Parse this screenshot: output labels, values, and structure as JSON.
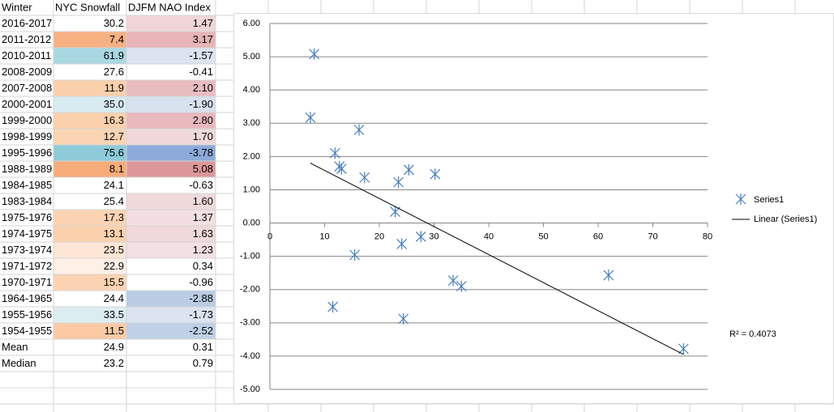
{
  "table": {
    "header": [
      "Winter",
      "NYC Snowfall",
      "DJFM NAO Index"
    ],
    "rows": [
      [
        "2016-2017",
        "30.2",
        "1.47"
      ],
      [
        "2011-2012",
        "7.4",
        "3.17"
      ],
      [
        "2010-2011",
        "61.9",
        "-1.57"
      ],
      [
        "2008-2009",
        "27.6",
        "-0.41"
      ],
      [
        "2007-2008",
        "11.9",
        "2.10"
      ],
      [
        "2000-2001",
        "35.0",
        "-1.90"
      ],
      [
        "1999-2000",
        "16.3",
        "2.80"
      ],
      [
        "1998-1999",
        "12.7",
        "1.70"
      ],
      [
        "1995-1996",
        "75.6",
        "-3.78"
      ],
      [
        "1988-1989",
        "8.1",
        "5.08"
      ],
      [
        "1984-1985",
        "24.1",
        "-0.63"
      ],
      [
        "1983-1984",
        "25.4",
        "1.60"
      ],
      [
        "1975-1976",
        "17.3",
        "1.37"
      ],
      [
        "1974-1975",
        "13.1",
        "1.63"
      ],
      [
        "1973-1974",
        "23.5",
        "1.23"
      ],
      [
        "1971-1972",
        "22.9",
        "0.34"
      ],
      [
        "1970-1971",
        "15.5",
        "-0.96"
      ],
      [
        "1964-1965",
        "24.4",
        "-2.88"
      ],
      [
        "1955-1956",
        "33.5",
        "-1.73"
      ],
      [
        "1954-1955",
        "11.5",
        "-2.52"
      ],
      [
        "Mean",
        "24.9",
        "0.31"
      ],
      [
        "Median",
        "23.2",
        "0.79"
      ]
    ]
  },
  "chart_data": {
    "type": "scatter",
    "series": [
      {
        "name": "Series1",
        "color": "#4a7ebb",
        "x": [
          30.2,
          7.4,
          61.9,
          27.6,
          11.9,
          35.0,
          16.3,
          12.7,
          75.6,
          8.1,
          24.1,
          25.4,
          17.3,
          13.1,
          23.5,
          22.9,
          15.5,
          24.4,
          33.5,
          11.5
        ],
        "values": [
          1.47,
          3.17,
          -1.57,
          -0.41,
          2.1,
          -1.9,
          2.8,
          1.7,
          -3.78,
          5.08,
          -0.63,
          1.6,
          1.37,
          1.63,
          1.23,
          0.34,
          -0.96,
          -2.88,
          -1.73,
          -2.52
        ]
      },
      {
        "name": "Linear (Series1)",
        "color": "#000000",
        "x": [
          7.4,
          75.6
        ],
        "values": [
          1.8,
          -3.95
        ]
      }
    ],
    "xlim": [
      0,
      80
    ],
    "xticks": [
      0,
      10,
      20,
      30,
      40,
      50,
      60,
      70,
      80
    ],
    "ylim": [
      -5,
      6
    ],
    "yticks": [
      {
        "value": 6,
        "label": "6.00"
      },
      {
        "value": 5,
        "label": "5.00"
      },
      {
        "value": 4,
        "label": "4.00"
      },
      {
        "value": 3,
        "label": "3.00"
      },
      {
        "value": 2,
        "label": "2.00"
      },
      {
        "value": 1,
        "label": "1.00"
      },
      {
        "value": 0,
        "label": "0.00"
      },
      {
        "value": -1,
        "label": "-1.00"
      },
      {
        "value": -2,
        "label": "-2.00"
      },
      {
        "value": -3,
        "label": "-3.00"
      },
      {
        "value": -4,
        "label": "-4.00"
      },
      {
        "value": -5,
        "label": "-5.00"
      }
    ],
    "annotation": "R² = 0.4073",
    "grid": true,
    "legend": "right"
  }
}
